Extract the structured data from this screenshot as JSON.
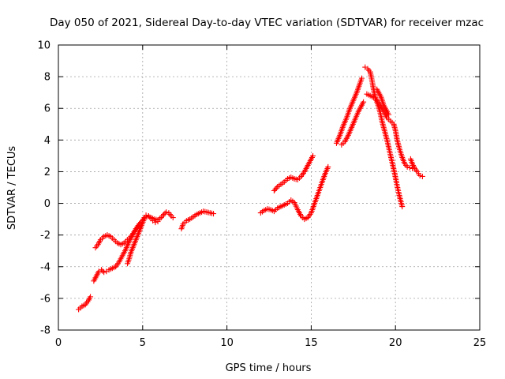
{
  "chart_data": {
    "type": "scatter",
    "title": "Day 050 of 2021, Sidereal Day-to-day VTEC variation (SDTVAR) for receiver mzac",
    "xlabel": "GPS time / hours",
    "ylabel": "SDTVAR / TECUs",
    "xlim": [
      0,
      25
    ],
    "ylim": [
      -8,
      10
    ],
    "xticks": [
      0,
      5,
      10,
      15,
      20,
      25
    ],
    "yticks": [
      -8,
      -6,
      -4,
      -2,
      0,
      2,
      4,
      6,
      8,
      10
    ],
    "grid": true,
    "marker": "+",
    "color": "#ff0000",
    "segments": [
      [
        [
          1.2,
          -6.7
        ],
        [
          1.4,
          -6.5
        ],
        [
          1.6,
          -6.4
        ],
        [
          1.8,
          -6.1
        ],
        [
          1.9,
          -5.9
        ]
      ],
      [
        [
          2.1,
          -4.9
        ],
        [
          2.2,
          -4.7
        ],
        [
          2.3,
          -4.5
        ],
        [
          2.4,
          -4.3
        ],
        [
          2.55,
          -4.2
        ],
        [
          2.7,
          -4.35
        ],
        [
          2.85,
          -4.3
        ],
        [
          3.0,
          -4.2
        ],
        [
          3.2,
          -4.1
        ],
        [
          3.4,
          -4.0
        ],
        [
          3.6,
          -3.7
        ],
        [
          3.8,
          -3.3
        ],
        [
          4.0,
          -2.9
        ],
        [
          4.2,
          -2.4
        ],
        [
          4.4,
          -2.0
        ],
        [
          4.6,
          -1.6
        ],
        [
          4.8,
          -1.3
        ],
        [
          5.0,
          -1.1
        ],
        [
          5.1,
          -0.9
        ],
        [
          5.2,
          -0.75
        ],
        [
          5.35,
          -0.8
        ],
        [
          5.5,
          -0.9
        ],
        [
          5.7,
          -1.0
        ],
        [
          5.9,
          -1.05
        ],
        [
          6.1,
          -0.9
        ],
        [
          6.25,
          -0.7
        ],
        [
          6.4,
          -0.55
        ],
        [
          6.55,
          -0.6
        ],
        [
          6.7,
          -0.8
        ],
        [
          6.8,
          -0.9
        ]
      ],
      [
        [
          2.2,
          -2.8
        ],
        [
          2.35,
          -2.6
        ],
        [
          2.5,
          -2.3
        ],
        [
          2.7,
          -2.1
        ],
        [
          2.9,
          -2.0
        ],
        [
          3.1,
          -2.1
        ],
        [
          3.3,
          -2.3
        ],
        [
          3.5,
          -2.5
        ],
        [
          3.7,
          -2.6
        ],
        [
          3.9,
          -2.5
        ],
        [
          4.1,
          -2.3
        ],
        [
          4.3,
          -2.1
        ],
        [
          4.5,
          -1.8
        ],
        [
          4.7,
          -1.5
        ],
        [
          4.9,
          -1.2
        ],
        [
          5.05,
          -1.0
        ]
      ],
      [
        [
          4.1,
          -3.8
        ],
        [
          4.2,
          -3.5
        ],
        [
          4.3,
          -3.1
        ],
        [
          4.45,
          -2.7
        ],
        [
          4.6,
          -2.3
        ],
        [
          4.75,
          -1.9
        ],
        [
          4.9,
          -1.5
        ],
        [
          5.05,
          -1.1
        ],
        [
          5.2,
          -0.85
        ],
        [
          5.35,
          -0.8
        ],
        [
          5.5,
          -0.95
        ],
        [
          5.6,
          -1.1
        ],
        [
          5.75,
          -1.2
        ],
        [
          5.9,
          -1.15
        ]
      ],
      [
        [
          7.3,
          -1.6
        ],
        [
          7.4,
          -1.3
        ],
        [
          7.6,
          -1.1
        ],
        [
          7.8,
          -1.0
        ],
        [
          8.0,
          -0.85
        ],
        [
          8.2,
          -0.7
        ],
        [
          8.4,
          -0.6
        ],
        [
          8.6,
          -0.5
        ],
        [
          8.8,
          -0.55
        ],
        [
          9.0,
          -0.6
        ],
        [
          9.2,
          -0.65
        ]
      ],
      [
        [
          12.0,
          -0.6
        ],
        [
          12.2,
          -0.45
        ],
        [
          12.4,
          -0.35
        ],
        [
          12.6,
          -0.4
        ],
        [
          12.8,
          -0.5
        ],
        [
          13.0,
          -0.3
        ],
        [
          13.2,
          -0.2
        ],
        [
          13.4,
          -0.1
        ],
        [
          13.6,
          0.0
        ],
        [
          13.8,
          0.2
        ],
        [
          14.0,
          0.05
        ],
        [
          14.2,
          -0.4
        ],
        [
          14.4,
          -0.8
        ],
        [
          14.6,
          -1.0
        ],
        [
          14.8,
          -0.9
        ],
        [
          15.0,
          -0.6
        ],
        [
          15.2,
          0.0
        ],
        [
          15.4,
          0.6
        ],
        [
          15.6,
          1.2
        ],
        [
          15.8,
          1.8
        ],
        [
          16.0,
          2.3
        ]
      ],
      [
        [
          12.8,
          0.8
        ],
        [
          13.0,
          1.05
        ],
        [
          13.2,
          1.2
        ],
        [
          13.4,
          1.35
        ],
        [
          13.6,
          1.55
        ],
        [
          13.8,
          1.65
        ],
        [
          14.0,
          1.55
        ],
        [
          14.2,
          1.5
        ],
        [
          14.4,
          1.7
        ],
        [
          14.6,
          2.0
        ],
        [
          14.8,
          2.4
        ],
        [
          15.0,
          2.8
        ],
        [
          15.1,
          3.0
        ]
      ],
      [
        [
          16.5,
          3.8
        ],
        [
          16.7,
          4.3
        ],
        [
          16.9,
          4.9
        ],
        [
          17.1,
          5.4
        ],
        [
          17.3,
          6.0
        ],
        [
          17.5,
          6.5
        ],
        [
          17.7,
          7.0
        ],
        [
          17.9,
          7.6
        ],
        [
          18.0,
          7.9
        ]
      ],
      [
        [
          16.8,
          3.7
        ],
        [
          17.0,
          3.9
        ],
        [
          17.2,
          4.3
        ],
        [
          17.4,
          4.8
        ],
        [
          17.6,
          5.3
        ],
        [
          17.8,
          5.8
        ],
        [
          18.0,
          6.2
        ],
        [
          18.1,
          6.4
        ]
      ],
      [
        [
          18.2,
          8.6
        ],
        [
          18.35,
          8.5
        ],
        [
          18.5,
          8.3
        ],
        [
          18.6,
          7.8
        ],
        [
          18.7,
          7.2
        ],
        [
          18.8,
          6.7
        ],
        [
          18.9,
          6.4
        ],
        [
          19.0,
          6.1
        ],
        [
          19.1,
          5.7
        ],
        [
          19.2,
          5.2
        ],
        [
          19.35,
          4.6
        ],
        [
          19.5,
          4.0
        ],
        [
          19.65,
          3.3
        ],
        [
          19.8,
          2.6
        ],
        [
          19.95,
          1.9
        ],
        [
          20.1,
          1.1
        ],
        [
          20.25,
          0.4
        ],
        [
          20.4,
          -0.2
        ]
      ],
      [
        [
          18.3,
          6.9
        ],
        [
          18.5,
          6.8
        ],
        [
          18.7,
          6.7
        ],
        [
          18.9,
          6.5
        ],
        [
          19.1,
          6.2
        ],
        [
          19.3,
          5.8
        ],
        [
          19.5,
          5.4
        ],
        [
          19.7,
          5.2
        ],
        [
          19.9,
          5.0
        ],
        [
          20.0,
          4.6
        ],
        [
          20.1,
          4.0
        ],
        [
          20.25,
          3.4
        ],
        [
          20.4,
          2.9
        ],
        [
          20.55,
          2.5
        ],
        [
          20.7,
          2.3
        ],
        [
          20.85,
          2.25
        ],
        [
          21.0,
          2.2
        ],
        [
          21.15,
          2.2
        ],
        [
          21.3,
          2.0
        ],
        [
          21.45,
          1.75
        ],
        [
          21.6,
          1.7
        ]
      ],
      [
        [
          18.9,
          7.2
        ],
        [
          19.0,
          7.0
        ],
        [
          19.15,
          6.7
        ],
        [
          19.3,
          6.2
        ],
        [
          19.45,
          5.9
        ],
        [
          19.6,
          5.6
        ]
      ],
      [
        [
          20.9,
          2.8
        ],
        [
          21.0,
          2.5
        ],
        [
          21.1,
          2.3
        ]
      ]
    ]
  }
}
